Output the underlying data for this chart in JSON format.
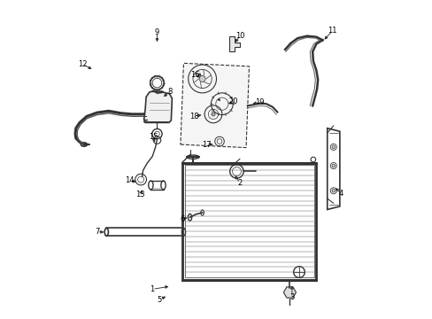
{
  "background_color": "#ffffff",
  "line_color": "#333333",
  "label_color": "#000000",
  "figure_width": 4.89,
  "figure_height": 3.6,
  "dpi": 100,
  "callouts": {
    "1": [
      0.295,
      0.085,
      0.355,
      0.095
    ],
    "2": [
      0.575,
      0.425,
      0.555,
      0.455
    ],
    "3": [
      0.742,
      0.058,
      0.742,
      0.105
    ],
    "4": [
      0.9,
      0.39,
      0.875,
      0.415
    ],
    "5": [
      0.318,
      0.052,
      0.345,
      0.065
    ],
    "6": [
      0.39,
      0.31,
      0.415,
      0.315
    ],
    "7": [
      0.118,
      0.268,
      0.148,
      0.268
    ],
    "8": [
      0.35,
      0.718,
      0.325,
      0.695
    ],
    "9": [
      0.31,
      0.908,
      0.31,
      0.868
    ],
    "10": [
      0.575,
      0.895,
      0.555,
      0.868
    ],
    "11": [
      0.872,
      0.912,
      0.84,
      0.878
    ],
    "12": [
      0.072,
      0.805,
      0.108,
      0.785
    ],
    "13": [
      0.255,
      0.388,
      0.268,
      0.408
    ],
    "14": [
      0.222,
      0.432,
      0.252,
      0.428
    ],
    "15": [
      0.298,
      0.572,
      0.305,
      0.548
    ],
    "16": [
      0.432,
      0.772,
      0.455,
      0.758
    ],
    "17": [
      0.468,
      0.548,
      0.498,
      0.548
    ],
    "18": [
      0.43,
      0.638,
      0.46,
      0.645
    ],
    "19": [
      0.638,
      0.682,
      0.608,
      0.678
    ],
    "20": [
      0.555,
      0.685,
      0.53,
      0.675
    ]
  }
}
